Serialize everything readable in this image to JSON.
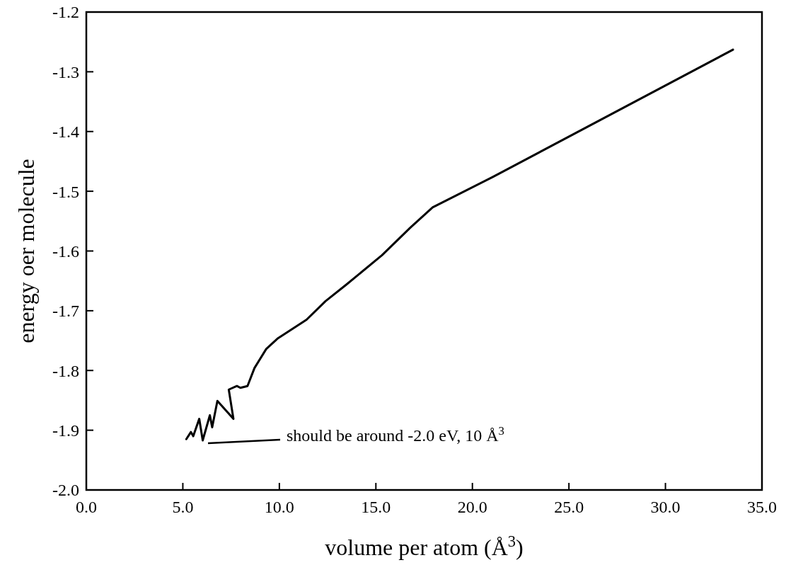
{
  "chart_data": {
    "type": "line",
    "xlabel": "volume per atom (Å$^{3}$)",
    "ylabel": "energy oer molecule",
    "x": [
      5.18,
      5.42,
      5.54,
      5.85,
      6.03,
      6.4,
      6.52,
      6.79,
      7.62,
      7.38,
      7.8,
      7.98,
      8.35,
      8.71,
      9.32,
      9.93,
      11.41,
      12.39,
      13.48,
      15.32,
      16.78,
      17.94,
      21.06,
      33.5
    ],
    "series": [
      {
        "color": "#000000",
        "values": [
          -1.915,
          -1.903,
          -1.91,
          -1.881,
          -1.917,
          -1.875,
          -1.895,
          -1.851,
          -1.881,
          -1.832,
          -1.826,
          -1.829,
          -1.826,
          -1.796,
          -1.764,
          -1.746,
          -1.715,
          -1.684,
          -1.656,
          -1.607,
          -1.561,
          -1.527,
          -1.476,
          -1.263
        ]
      }
    ],
    "xlim": [
      0,
      35
    ],
    "ylim": [
      -2.0,
      -1.2
    ],
    "xticks": [
      {
        "value": 0,
        "label": "0.0"
      },
      {
        "value": 5,
        "label": "5.0"
      },
      {
        "value": 10,
        "label": "10.0"
      },
      {
        "value": 15,
        "label": "15.0"
      },
      {
        "value": 20,
        "label": "20.0"
      },
      {
        "value": 25,
        "label": "25.0"
      },
      {
        "value": 30,
        "label": "30.0"
      },
      {
        "value": 35,
        "label": "35.0"
      }
    ],
    "yticks": [
      -1.2,
      -1.3,
      -1.4,
      -1.5,
      -1.6,
      -1.7,
      -1.8,
      -1.9,
      {
        "value": -2.0,
        "label": "-2.0"
      }
    ],
    "annotations": [
      "should be around -2.0 eV, 10 Å$^{3}$"
    ],
    "grid": false,
    "marker": "none",
    "line_style": "solid"
  }
}
